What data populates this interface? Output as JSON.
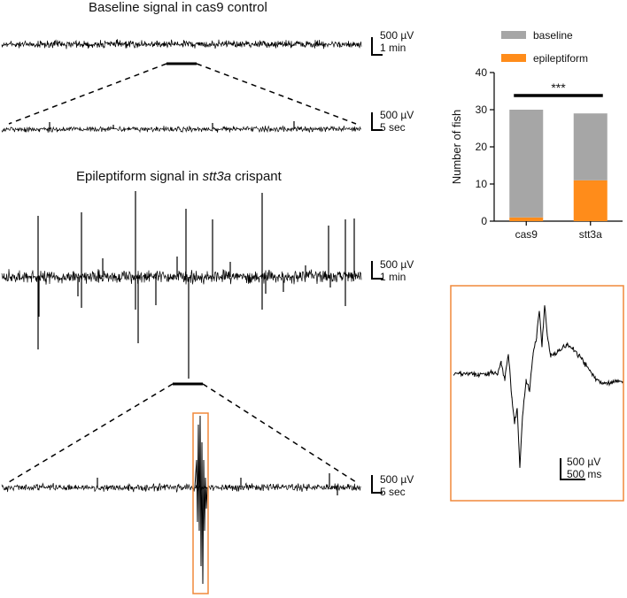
{
  "panels": {
    "baseline_title": "Baseline signal in cas9 control",
    "epi_title_pre": "Epileptiform signal in ",
    "epi_title_gene": "stt3a",
    "epi_title_post": " crispant",
    "scale_bars": [
      {
        "amp": "500 µV",
        "time": "1 min"
      },
      {
        "amp": "500 µV",
        "time": "5 sec"
      },
      {
        "amp": "500 µV",
        "time": "1 min"
      },
      {
        "amp": "500 µV",
        "time": "5 sec"
      },
      {
        "amp": "500 µV",
        "time": "500 ms"
      }
    ]
  },
  "colors": {
    "baseline": "#a6a6a6",
    "epileptiform": "#ff8c1a",
    "trace": "#000000",
    "highlight_box": "#f0883a"
  },
  "chart_data": {
    "type": "bar",
    "stacked": true,
    "categories": [
      "cas9",
      "stt3a"
    ],
    "series": [
      {
        "name": "baseline",
        "values": [
          29,
          18
        ]
      },
      {
        "name": "epileptiform",
        "values": [
          1,
          11
        ]
      }
    ],
    "ylabel": "Number of fish",
    "ylim": [
      0,
      40
    ],
    "yticks": [
      0,
      10,
      20,
      30,
      40
    ],
    "annotation": "***",
    "legend_position": "top"
  }
}
